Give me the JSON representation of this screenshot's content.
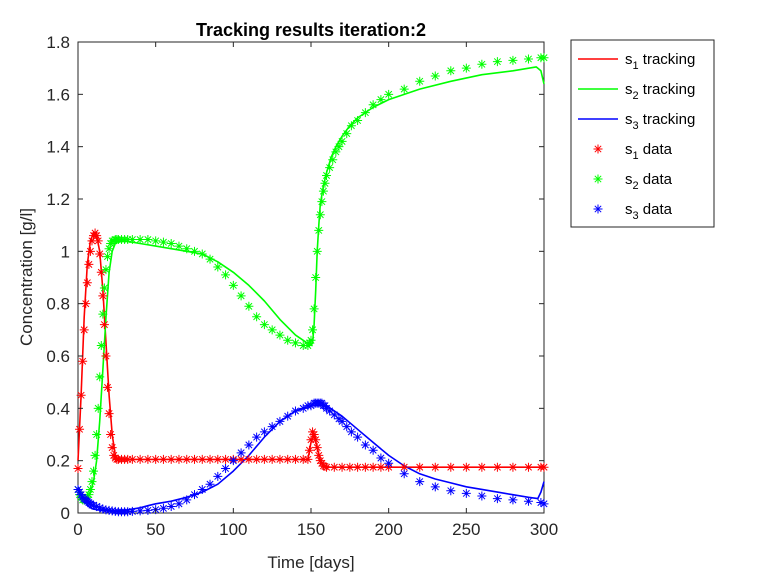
{
  "chart_data": {
    "type": "line",
    "title": "Tracking results iteration:2",
    "xlabel": "Time [days]",
    "ylabel": "Concentration [g/l]",
    "xlim": [
      0,
      300
    ],
    "ylim": [
      0,
      1.8
    ],
    "xticks": [
      0,
      50,
      100,
      150,
      200,
      250,
      300
    ],
    "yticks": [
      0,
      0.2,
      0.4,
      0.6,
      0.8,
      1,
      1.2,
      1.4,
      1.6,
      1.8
    ],
    "xtick_labels": [
      "0",
      "50",
      "100",
      "150",
      "200",
      "250",
      "300"
    ],
    "ytick_labels": [
      "0",
      "0.2",
      "0.4",
      "0.6",
      "0.8",
      "1",
      "1.2",
      "1.4",
      "1.6",
      "1.8"
    ],
    "grid": false,
    "legend_position": "outside-top-right",
    "series": [
      {
        "name": "s_1 tracking",
        "sub": "1",
        "kind": "line",
        "color": "#ff0000",
        "x": [
          0,
          2,
          4,
          6,
          8,
          10,
          12,
          14,
          16,
          18,
          20,
          22,
          24,
          26,
          28,
          30,
          40,
          60,
          80,
          100,
          120,
          140,
          148,
          150,
          152,
          154,
          156,
          158,
          160,
          170,
          180,
          200,
          220,
          240,
          260,
          280,
          300
        ],
        "y": [
          0.2,
          0.45,
          0.75,
          0.95,
          1.04,
          1.07,
          1.06,
          1.0,
          0.85,
          0.65,
          0.45,
          0.3,
          0.22,
          0.205,
          0.205,
          0.205,
          0.205,
          0.205,
          0.205,
          0.205,
          0.205,
          0.205,
          0.205,
          0.27,
          0.3,
          0.25,
          0.2,
          0.18,
          0.175,
          0.175,
          0.175,
          0.175,
          0.175,
          0.175,
          0.175,
          0.175,
          0.175
        ]
      },
      {
        "name": "s_2 tracking",
        "sub": "2",
        "kind": "line",
        "color": "#00ff00",
        "x": [
          0,
          2,
          4,
          6,
          8,
          10,
          12,
          14,
          16,
          18,
          20,
          22,
          24,
          26,
          28,
          30,
          40,
          50,
          60,
          70,
          80,
          90,
          100,
          110,
          120,
          130,
          140,
          145,
          150,
          151,
          152,
          153,
          154,
          155,
          156,
          158,
          160,
          163,
          166,
          170,
          175,
          180,
          190,
          200,
          220,
          240,
          260,
          280,
          295,
          298,
          300
        ],
        "y": [
          0.09,
          0.06,
          0.05,
          0.06,
          0.08,
          0.12,
          0.2,
          0.35,
          0.55,
          0.75,
          0.92,
          1.0,
          1.03,
          1.04,
          1.04,
          1.04,
          1.03,
          1.02,
          1.01,
          1.0,
          0.99,
          0.96,
          0.92,
          0.87,
          0.81,
          0.74,
          0.68,
          0.66,
          0.64,
          0.65,
          0.72,
          0.85,
          1.0,
          1.1,
          1.18,
          1.25,
          1.3,
          1.36,
          1.4,
          1.44,
          1.48,
          1.51,
          1.55,
          1.58,
          1.62,
          1.65,
          1.675,
          1.69,
          1.705,
          1.69,
          1.64
        ]
      },
      {
        "name": "s_3 tracking",
        "sub": "3",
        "kind": "line",
        "color": "#0000ff",
        "x": [
          0,
          2,
          4,
          6,
          8,
          10,
          15,
          20,
          25,
          30,
          35,
          40,
          45,
          50,
          60,
          70,
          80,
          90,
          100,
          110,
          120,
          130,
          140,
          150,
          152,
          155,
          160,
          170,
          180,
          190,
          200,
          210,
          220,
          230,
          240,
          250,
          260,
          270,
          280,
          290,
          296,
          298,
          300
        ],
        "y": [
          0.1,
          0.07,
          0.045,
          0.03,
          0.02,
          0.015,
          0.01,
          0.008,
          0.008,
          0.01,
          0.015,
          0.02,
          0.028,
          0.035,
          0.045,
          0.06,
          0.08,
          0.11,
          0.16,
          0.22,
          0.29,
          0.35,
          0.39,
          0.41,
          0.42,
          0.42,
          0.41,
          0.37,
          0.32,
          0.27,
          0.22,
          0.18,
          0.15,
          0.13,
          0.115,
          0.1,
          0.09,
          0.08,
          0.07,
          0.06,
          0.055,
          0.08,
          0.12
        ]
      },
      {
        "name": "s_1 data",
        "sub": "1",
        "kind": "marker",
        "color": "#ff0000",
        "x": [
          0,
          1,
          2,
          3,
          4,
          5,
          6,
          7,
          8,
          9,
          10,
          11,
          12,
          13,
          14,
          15,
          16,
          17,
          18,
          19,
          20,
          21,
          22,
          23,
          24,
          25,
          26,
          28,
          30,
          32,
          35,
          40,
          45,
          50,
          55,
          60,
          65,
          70,
          75,
          80,
          85,
          90,
          95,
          100,
          105,
          110,
          115,
          120,
          125,
          130,
          135,
          140,
          145,
          148,
          149,
          150,
          151,
          152,
          153,
          154,
          155,
          156,
          157,
          158,
          159,
          160,
          165,
          170,
          175,
          180,
          185,
          190,
          195,
          200,
          210,
          220,
          230,
          240,
          250,
          260,
          270,
          280,
          290,
          298,
          300
        ],
        "y": [
          0.17,
          0.32,
          0.45,
          0.58,
          0.7,
          0.8,
          0.88,
          0.95,
          1.0,
          1.04,
          1.06,
          1.07,
          1.06,
          1.04,
          0.99,
          0.92,
          0.83,
          0.72,
          0.6,
          0.48,
          0.38,
          0.3,
          0.25,
          0.22,
          0.21,
          0.205,
          0.205,
          0.205,
          0.205,
          0.205,
          0.205,
          0.205,
          0.205,
          0.205,
          0.205,
          0.205,
          0.205,
          0.205,
          0.205,
          0.205,
          0.205,
          0.205,
          0.205,
          0.205,
          0.205,
          0.205,
          0.205,
          0.205,
          0.205,
          0.205,
          0.205,
          0.205,
          0.205,
          0.205,
          0.24,
          0.28,
          0.31,
          0.3,
          0.28,
          0.25,
          0.22,
          0.2,
          0.19,
          0.18,
          0.178,
          0.175,
          0.175,
          0.175,
          0.175,
          0.175,
          0.175,
          0.175,
          0.175,
          0.175,
          0.175,
          0.175,
          0.175,
          0.175,
          0.175,
          0.175,
          0.175,
          0.175,
          0.175,
          0.175,
          0.175
        ]
      },
      {
        "name": "s_2 data",
        "sub": "2",
        "kind": "marker",
        "color": "#00ff00",
        "x": [
          0,
          1,
          2,
          3,
          4,
          5,
          6,
          7,
          8,
          9,
          10,
          11,
          12,
          13,
          14,
          15,
          16,
          17,
          18,
          19,
          20,
          21,
          22,
          23,
          24,
          25,
          26,
          28,
          30,
          32,
          35,
          40,
          45,
          50,
          55,
          60,
          65,
          70,
          75,
          80,
          85,
          90,
          95,
          100,
          105,
          110,
          115,
          120,
          125,
          130,
          135,
          140,
          145,
          148,
          149,
          150,
          151,
          152,
          153,
          154,
          155,
          156,
          157,
          158,
          159,
          160,
          162,
          164,
          166,
          168,
          170,
          173,
          176,
          180,
          185,
          190,
          195,
          200,
          210,
          220,
          230,
          240,
          250,
          260,
          270,
          280,
          290,
          298,
          300
        ],
        "y": [
          0.09,
          0.07,
          0.06,
          0.05,
          0.05,
          0.05,
          0.06,
          0.07,
          0.09,
          0.12,
          0.16,
          0.22,
          0.3,
          0.4,
          0.52,
          0.64,
          0.76,
          0.86,
          0.93,
          0.98,
          1.01,
          1.03,
          1.04,
          1.04,
          1.045,
          1.045,
          1.045,
          1.045,
          1.045,
          1.045,
          1.045,
          1.045,
          1.045,
          1.04,
          1.035,
          1.03,
          1.02,
          1.01,
          1.0,
          0.99,
          0.97,
          0.94,
          0.91,
          0.87,
          0.83,
          0.79,
          0.75,
          0.72,
          0.7,
          0.68,
          0.66,
          0.65,
          0.64,
          0.64,
          0.65,
          0.66,
          0.7,
          0.78,
          0.9,
          1.0,
          1.08,
          1.14,
          1.19,
          1.23,
          1.26,
          1.29,
          1.32,
          1.35,
          1.38,
          1.4,
          1.42,
          1.45,
          1.48,
          1.5,
          1.53,
          1.56,
          1.58,
          1.6,
          1.62,
          1.65,
          1.67,
          1.69,
          1.7,
          1.715,
          1.725,
          1.73,
          1.735,
          1.74,
          1.74
        ]
      },
      {
        "name": "s_3 data",
        "sub": "3",
        "kind": "marker",
        "color": "#0000ff",
        "x": [
          0,
          1,
          2,
          3,
          4,
          5,
          6,
          7,
          8,
          9,
          10,
          12,
          14,
          16,
          18,
          20,
          22,
          24,
          26,
          28,
          30,
          32,
          35,
          40,
          45,
          50,
          55,
          60,
          65,
          70,
          75,
          80,
          85,
          90,
          95,
          100,
          105,
          110,
          115,
          120,
          125,
          130,
          135,
          140,
          145,
          148,
          150,
          152,
          153,
          154,
          155,
          156,
          157,
          158,
          159,
          160,
          162,
          165,
          168,
          170,
          173,
          176,
          180,
          185,
          190,
          195,
          200,
          210,
          220,
          230,
          240,
          250,
          260,
          270,
          280,
          290,
          298,
          300
        ],
        "y": [
          0.09,
          0.08,
          0.07,
          0.06,
          0.055,
          0.05,
          0.045,
          0.04,
          0.035,
          0.03,
          0.03,
          0.025,
          0.02,
          0.015,
          0.012,
          0.01,
          0.008,
          0.006,
          0.005,
          0.005,
          0.005,
          0.005,
          0.006,
          0.008,
          0.01,
          0.013,
          0.018,
          0.025,
          0.035,
          0.05,
          0.07,
          0.09,
          0.11,
          0.14,
          0.17,
          0.2,
          0.23,
          0.26,
          0.29,
          0.31,
          0.33,
          0.35,
          0.37,
          0.39,
          0.4,
          0.41,
          0.41,
          0.42,
          0.42,
          0.42,
          0.42,
          0.42,
          0.42,
          0.41,
          0.41,
          0.4,
          0.39,
          0.375,
          0.36,
          0.35,
          0.33,
          0.31,
          0.29,
          0.26,
          0.24,
          0.21,
          0.19,
          0.15,
          0.12,
          0.1,
          0.085,
          0.075,
          0.065,
          0.055,
          0.05,
          0.045,
          0.04,
          0.035
        ]
      }
    ]
  }
}
